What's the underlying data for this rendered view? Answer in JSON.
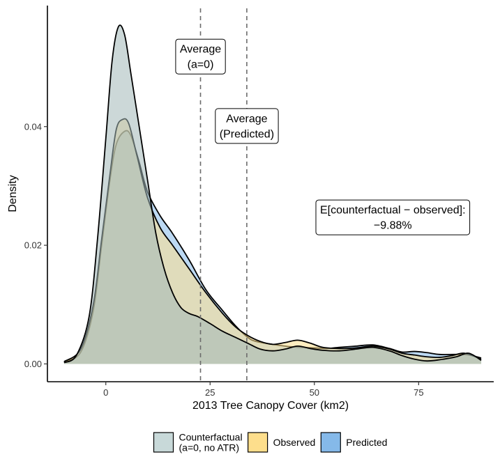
{
  "chart_data": {
    "type": "area",
    "title": "",
    "xlabel": "2013 Tree Canopy Cover (km2)",
    "ylabel": "Density",
    "xlim": [
      -14,
      93
    ],
    "ylim": [
      -0.003,
      0.0604
    ],
    "x_ticks": [
      {
        "value": 0,
        "label": "0"
      },
      {
        "value": 25,
        "label": "25"
      },
      {
        "value": 50,
        "label": "50"
      },
      {
        "value": 75,
        "label": "75"
      }
    ],
    "y_ticks": [
      {
        "value": 0.0,
        "label": "0.00"
      },
      {
        "value": 0.02,
        "label": "0.02"
      },
      {
        "value": 0.04,
        "label": "0.04"
      }
    ],
    "series": [
      {
        "name": "Predicted",
        "color": "#85B9E9",
        "points": [
          [
            -10,
            0.0003
          ],
          [
            -6,
            0.002
          ],
          [
            -3,
            0.009
          ],
          [
            -1,
            0.02
          ],
          [
            1,
            0.031
          ],
          [
            2.5,
            0.037
          ],
          [
            4.5,
            0.0392
          ],
          [
            6,
            0.0385
          ],
          [
            8,
            0.034
          ],
          [
            10,
            0.029
          ],
          [
            13,
            0.025
          ],
          [
            16,
            0.022
          ],
          [
            20,
            0.0175
          ],
          [
            24,
            0.0125
          ],
          [
            28,
            0.009
          ],
          [
            31,
            0.0065
          ],
          [
            34,
            0.0045
          ],
          [
            36,
            0.0038
          ],
          [
            40,
            0.0033
          ],
          [
            43,
            0.003
          ],
          [
            46,
            0.0028
          ],
          [
            50,
            0.0027
          ],
          [
            53,
            0.0026
          ],
          [
            56,
            0.0028
          ],
          [
            60,
            0.003
          ],
          [
            64,
            0.0032
          ],
          [
            68,
            0.0026
          ],
          [
            71,
            0.002
          ],
          [
            74,
            0.0021
          ],
          [
            77,
            0.0019
          ],
          [
            80,
            0.0016
          ],
          [
            84,
            0.0016
          ],
          [
            87,
            0.0015
          ],
          [
            90,
            0.001
          ]
        ]
      },
      {
        "name": "Observed",
        "color": "#FDDE8C",
        "points": [
          [
            -10,
            0.0004
          ],
          [
            -6,
            0.0025
          ],
          [
            -3,
            0.01
          ],
          [
            -1,
            0.021
          ],
          [
            1,
            0.032
          ],
          [
            2.5,
            0.0395
          ],
          [
            4,
            0.0412
          ],
          [
            5.5,
            0.0405
          ],
          [
            7.5,
            0.035
          ],
          [
            10,
            0.028
          ],
          [
            13,
            0.023
          ],
          [
            16,
            0.02
          ],
          [
            20,
            0.016
          ],
          [
            24,
            0.012
          ],
          [
            28,
            0.0085
          ],
          [
            31,
            0.0063
          ],
          [
            34,
            0.0048
          ],
          [
            37,
            0.0038
          ],
          [
            40,
            0.0033
          ],
          [
            43,
            0.0036
          ],
          [
            46,
            0.004
          ],
          [
            49,
            0.0035
          ],
          [
            52,
            0.0028
          ],
          [
            56,
            0.0026
          ],
          [
            60,
            0.0027
          ],
          [
            64,
            0.003
          ],
          [
            68,
            0.0025
          ],
          [
            71,
            0.0018
          ],
          [
            74,
            0.0015
          ],
          [
            77,
            0.0012
          ],
          [
            80,
            0.0011
          ],
          [
            83,
            0.0014
          ],
          [
            86,
            0.0018
          ],
          [
            90,
            0.0008
          ]
        ]
      },
      {
        "name": "Counterfactual\n(a=0, no ATR)",
        "color": "#A3B8B8",
        "points": [
          [
            -10,
            0.0002
          ],
          [
            -7,
            0.0015
          ],
          [
            -4,
            0.008
          ],
          [
            -2,
            0.021
          ],
          [
            0,
            0.038
          ],
          [
            1.5,
            0.051
          ],
          [
            3,
            0.0568
          ],
          [
            4.5,
            0.0555
          ],
          [
            6,
            0.049
          ],
          [
            8,
            0.04
          ],
          [
            10,
            0.031
          ],
          [
            12,
            0.022
          ],
          [
            14,
            0.016
          ],
          [
            16,
            0.012
          ],
          [
            18,
            0.0095
          ],
          [
            20,
            0.0085
          ],
          [
            22,
            0.008
          ],
          [
            25,
            0.0068
          ],
          [
            28,
            0.0055
          ],
          [
            31,
            0.0045
          ],
          [
            34,
            0.0035
          ],
          [
            37,
            0.0025
          ],
          [
            40,
            0.0022
          ],
          [
            43,
            0.0025
          ],
          [
            46,
            0.003
          ],
          [
            49,
            0.0026
          ],
          [
            52,
            0.0023
          ],
          [
            56,
            0.0022
          ],
          [
            60,
            0.0025
          ],
          [
            64,
            0.0028
          ],
          [
            68,
            0.0022
          ],
          [
            71,
            0.0014
          ],
          [
            74,
            0.0008
          ],
          [
            77,
            0.0005
          ],
          [
            80,
            0.0007
          ],
          [
            84,
            0.0012
          ],
          [
            87,
            0.0018
          ],
          [
            90,
            0.0006
          ]
        ]
      }
    ],
    "vlines": [
      {
        "name": "average-a0",
        "x": 22.7
      },
      {
        "name": "average-predicted",
        "x": 33.8
      }
    ],
    "annotations": [
      {
        "name": "average-a0-label",
        "lines": [
          "Average",
          "(a=0)"
        ],
        "x": 22.7,
        "y": 0.0518
      },
      {
        "name": "average-predicted-label",
        "lines": [
          "Average",
          "(Predicted)"
        ],
        "x": 33.8,
        "y": 0.0401
      },
      {
        "name": "effect-label",
        "lines": [
          "E[counterfactual − observed]:",
          "−9.88%"
        ],
        "x": 68.8,
        "y": 0.0247
      }
    ],
    "legend": {
      "position": "bottom",
      "items": [
        {
          "label_lines": [
            "Counterfactual",
            "(a=0, no ATR)"
          ],
          "color": "#C8D9D9"
        },
        {
          "label_lines": [
            "Observed"
          ],
          "color": "#FDDE8C"
        },
        {
          "label_lines": [
            "Predicted"
          ],
          "color": "#85B9E9"
        }
      ]
    }
  }
}
